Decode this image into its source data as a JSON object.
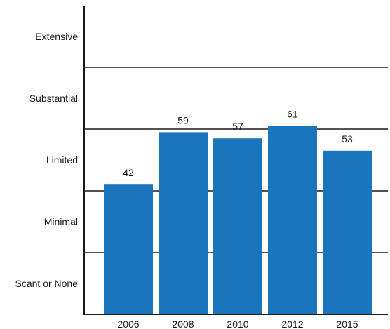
{
  "chart_data": {
    "type": "bar",
    "categories": [
      "2006",
      "2008",
      "2010",
      "2012",
      "2015"
    ],
    "values": [
      42,
      59,
      57,
      61,
      53
    ],
    "ylim": [
      0,
      100
    ],
    "bands": [
      "Scant or None",
      "Minimal",
      "Limited",
      "Substantial",
      "Extensive"
    ],
    "title": "",
    "xlabel": "",
    "ylabel": "",
    "grid": true,
    "legend": "none",
    "colors": {
      "bar": "#1b75bc",
      "axis": "#1a1a1a",
      "grid": "#1a1a1a",
      "text": "#1a1a1a"
    }
  }
}
